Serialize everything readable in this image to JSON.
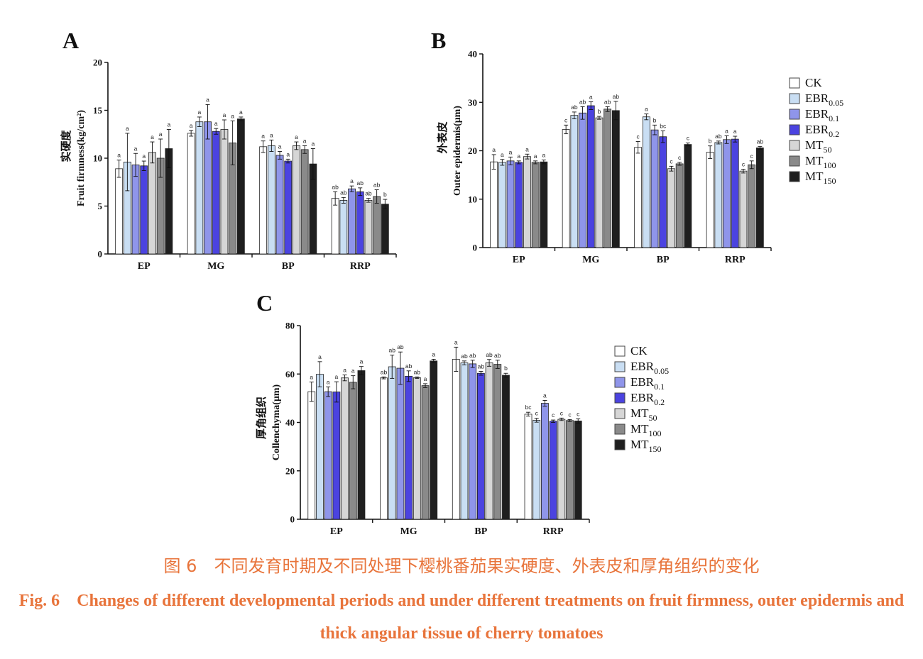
{
  "legend": {
    "items": [
      {
        "base": "CK",
        "sub": ""
      },
      {
        "base": "EBR",
        "sub": "0.05"
      },
      {
        "base": "EBR",
        "sub": "0.1"
      },
      {
        "base": "EBR",
        "sub": "0.2"
      },
      {
        "base": "MT",
        "sub": "50"
      },
      {
        "base": "MT",
        "sub": "100"
      },
      {
        "base": "MT",
        "sub": "150"
      }
    ],
    "colors": [
      "#ffffff",
      "#c9def3",
      "#8f95ea",
      "#4b43e0",
      "#d6d6d6",
      "#8a8a8a",
      "#1f1f1f"
    ]
  },
  "chart_data": [
    {
      "panel": "A",
      "type": "bar",
      "ylabel": "Fruit firmness(kg/cm²)",
      "ylabel_zh": "实硬度",
      "ylim": [
        0,
        20
      ],
      "yticks": [
        0,
        5,
        10,
        15,
        20
      ],
      "categories": [
        "EP",
        "MG",
        "BP",
        "RRP"
      ],
      "series": [
        {
          "name": "CK",
          "values": [
            8.9,
            12.6,
            11.2,
            5.8
          ],
          "errors": [
            0.9,
            0.3,
            0.6,
            0.7
          ],
          "letters": [
            "a",
            "a",
            "a",
            "ab"
          ]
        },
        {
          "name": "EBR0.05",
          "values": [
            9.6,
            13.8,
            11.3,
            5.6
          ],
          "errors": [
            3.0,
            0.5,
            0.6,
            0.3
          ],
          "letters": [
            "a",
            "a",
            "a",
            "ab"
          ]
        },
        {
          "name": "EBR0.1",
          "values": [
            9.3,
            13.8,
            10.3,
            6.8
          ],
          "errors": [
            1.2,
            1.8,
            0.4,
            0.3
          ],
          "letters": [
            "a",
            "a",
            "a",
            "a"
          ]
        },
        {
          "name": "EBR0.2",
          "values": [
            9.2,
            12.8,
            9.7,
            6.5
          ],
          "errors": [
            0.5,
            0.3,
            0.2,
            0.4
          ],
          "letters": [
            "a",
            "a",
            "a",
            "ab"
          ]
        },
        {
          "name": "MT50",
          "values": [
            10.6,
            13.0,
            11.3,
            5.6
          ],
          "errors": [
            1.1,
            1.0,
            0.4,
            0.2
          ],
          "letters": [
            "a",
            "a",
            "a",
            "ab"
          ]
        },
        {
          "name": "MT100",
          "values": [
            10.0,
            11.6,
            10.9,
            6.0
          ],
          "errors": [
            2.0,
            2.3,
            0.4,
            0.7
          ],
          "letters": [
            "a",
            "a",
            "a",
            "ab"
          ]
        },
        {
          "name": "MT150",
          "values": [
            11.0,
            14.1,
            9.4,
            5.2
          ],
          "errors": [
            2.0,
            0.2,
            1.6,
            0.5
          ],
          "letters": [
            "a",
            "a",
            "a",
            "b"
          ]
        }
      ]
    },
    {
      "panel": "B",
      "type": "bar",
      "ylabel": "Outer epidermis(μm)",
      "ylabel_zh": "外表皮",
      "ylim": [
        0,
        40
      ],
      "yticks": [
        0,
        10,
        20,
        30,
        40
      ],
      "categories": [
        "EP",
        "MG",
        "BP",
        "RRP"
      ],
      "series": [
        {
          "name": "CK",
          "values": [
            17.7,
            24.4,
            20.7,
            19.7
          ],
          "errors": [
            1.5,
            0.9,
            1.2,
            1.3
          ],
          "letters": [
            "a",
            "c",
            "c",
            "b"
          ]
        },
        {
          "name": "EBR0.05",
          "values": [
            17.6,
            27.3,
            27.0,
            21.7
          ],
          "errors": [
            0.6,
            0.7,
            0.6,
            0.3
          ],
          "letters": [
            "a",
            "ab",
            "a",
            "ab"
          ]
        },
        {
          "name": "EBR0.1",
          "values": [
            17.9,
            27.8,
            24.3,
            22.3
          ],
          "errors": [
            0.8,
            1.3,
            1.0,
            0.8
          ],
          "letters": [
            "a",
            "ab",
            "b",
            "a"
          ]
        },
        {
          "name": "EBR0.2",
          "values": [
            17.6,
            29.3,
            22.9,
            22.4
          ],
          "errors": [
            0.3,
            0.8,
            1.2,
            0.6
          ],
          "letters": [
            "a",
            "a",
            "bc",
            "a"
          ]
        },
        {
          "name": "MT50",
          "values": [
            18.8,
            26.8,
            16.3,
            15.8
          ],
          "errors": [
            0.5,
            0.3,
            0.5,
            0.4
          ],
          "letters": [
            "a",
            "b",
            "c",
            "c"
          ]
        },
        {
          "name": "MT100",
          "values": [
            17.6,
            28.6,
            17.3,
            17.1
          ],
          "errors": [
            0.3,
            0.5,
            0.3,
            0.8
          ],
          "letters": [
            "a",
            "ab",
            "c",
            "c"
          ]
        },
        {
          "name": "MT150",
          "values": [
            17.7,
            28.3,
            21.3,
            20.6
          ],
          "errors": [
            0.4,
            1.9,
            0.3,
            0.3
          ],
          "letters": [
            "a",
            "ab",
            "c",
            "ab"
          ]
        }
      ]
    },
    {
      "panel": "C",
      "type": "bar",
      "ylabel": "Collenchyma(μm)",
      "ylabel_zh": "厚角组织",
      "ylim": [
        0,
        80
      ],
      "yticks": [
        0,
        20,
        40,
        60,
        80
      ],
      "categories": [
        "EP",
        "MG",
        "BP",
        "RRP"
      ],
      "series": [
        {
          "name": "CK",
          "values": [
            52.7,
            58.4,
            66.1,
            43.4
          ],
          "errors": [
            4.0,
            0.4,
            5.0,
            0.8
          ],
          "letters": [
            "a",
            "ab",
            "a",
            "bc"
          ]
        },
        {
          "name": "EBR0.05",
          "values": [
            59.9,
            63.0,
            64.6,
            40.9
          ],
          "errors": [
            5.2,
            4.8,
            0.8,
            0.8
          ],
          "letters": [
            "a",
            "ab",
            "ab",
            "c"
          ]
        },
        {
          "name": "EBR0.1",
          "values": [
            52.7,
            62.4,
            64.2,
            47.9
          ],
          "errors": [
            2.0,
            6.7,
            1.5,
            1.2
          ],
          "letters": [
            "a",
            "ab",
            "ab",
            "a"
          ]
        },
        {
          "name": "EBR0.2",
          "values": [
            52.6,
            59.1,
            60.3,
            40.5
          ],
          "errors": [
            4.2,
            2.2,
            0.8,
            0.5
          ],
          "letters": [
            "a",
            "ab",
            "ab",
            "c"
          ]
        },
        {
          "name": "MT50",
          "values": [
            58.4,
            58.5,
            64.6,
            41.3
          ],
          "errors": [
            1.2,
            0.3,
            1.4,
            0.5
          ],
          "letters": [
            "a",
            "ab",
            "ab",
            "c"
          ]
        },
        {
          "name": "MT100",
          "values": [
            56.6,
            55.2,
            64.0,
            40.8
          ],
          "errors": [
            2.7,
            0.8,
            1.7,
            0.4
          ],
          "letters": [
            "a",
            "a",
            "ab",
            "c"
          ]
        },
        {
          "name": "MT150",
          "values": [
            61.4,
            65.4,
            59.5,
            40.6
          ],
          "errors": [
            1.7,
            0.7,
            0.8,
            0.9
          ],
          "letters": [
            "a",
            "a",
            "b",
            "c"
          ]
        }
      ]
    }
  ],
  "captions": {
    "zh": "图 6　不同发育时期及不同处理下樱桃番茄果实硬度、外表皮和厚角组织的变化",
    "en": "Fig. 6　Changes of different developmental periods and under different treatments on fruit firmness, outer epidermis and thick angular tissue of cherry tomatoes"
  }
}
